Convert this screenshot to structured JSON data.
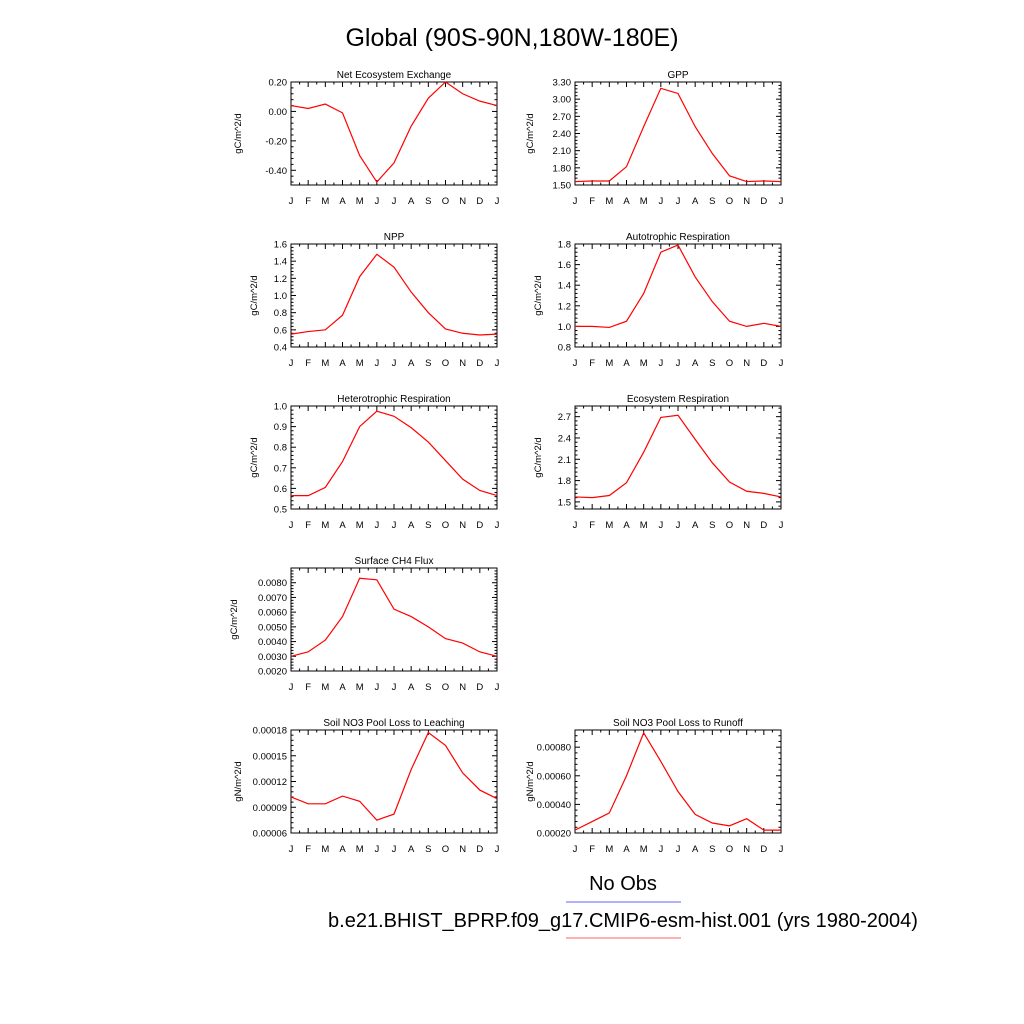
{
  "page": {
    "title": "Global (90S-90N,180W-180E)",
    "legend": {
      "obs_label": "No Obs",
      "obs_color": "#8080ff",
      "model_label": "b.e21.BHIST_BPRP.f09_g17.CMIP6-esm-hist.001 (yrs 1980-2004)",
      "model_color": "#ff0000"
    }
  },
  "chart_data": [
    {
      "type": "line",
      "title": "Net Ecosystem Exchange",
      "ylabel": "gC/m^2/d",
      "categories": [
        "J",
        "F",
        "M",
        "A",
        "M",
        "J",
        "J",
        "A",
        "S",
        "O",
        "N",
        "D",
        "J"
      ],
      "series": [
        {
          "values": [
            0.04,
            0.02,
            0.05,
            -0.01,
            -0.3,
            -0.48,
            -0.35,
            -0.1,
            0.09,
            0.2,
            0.12,
            0.07,
            0.04
          ],
          "color": "#ff0000"
        }
      ],
      "ylim": [
        -0.5,
        0.2
      ],
      "yticks": [
        0.2,
        0.0,
        -0.2,
        -0.4
      ],
      "yticklabels": [
        "0.20",
        "0.00",
        "-0.20",
        "-0.40"
      ]
    },
    {
      "type": "line",
      "title": "GPP",
      "ylabel": "gC/m^2/d",
      "categories": [
        "J",
        "F",
        "M",
        "A",
        "M",
        "J",
        "J",
        "A",
        "S",
        "O",
        "N",
        "D",
        "J"
      ],
      "series": [
        {
          "values": [
            1.56,
            1.57,
            1.57,
            1.82,
            2.52,
            3.19,
            3.1,
            2.52,
            2.05,
            1.66,
            1.56,
            1.57,
            1.56
          ],
          "color": "#ff0000"
        }
      ],
      "ylim": [
        1.5,
        3.3
      ],
      "yticks": [
        3.3,
        3.0,
        2.7,
        2.4,
        2.1,
        1.8,
        1.5
      ],
      "yticklabels": [
        "3.30",
        "3.00",
        "2.70",
        "2.40",
        "2.10",
        "1.80",
        "1.50"
      ]
    },
    {
      "type": "line",
      "title": "NPP",
      "ylabel": "gC/m^2/d",
      "categories": [
        "J",
        "F",
        "M",
        "A",
        "M",
        "J",
        "J",
        "A",
        "S",
        "O",
        "N",
        "D",
        "J"
      ],
      "series": [
        {
          "values": [
            0.55,
            0.58,
            0.6,
            0.77,
            1.22,
            1.48,
            1.33,
            1.04,
            0.8,
            0.61,
            0.56,
            0.54,
            0.55
          ],
          "color": "#ff0000"
        }
      ],
      "ylim": [
        0.4,
        1.6
      ],
      "yticks": [
        1.6,
        1.4,
        1.2,
        1.0,
        0.8,
        0.6,
        0.4
      ],
      "yticklabels": [
        "1.6",
        "1.4",
        "1.2",
        "1.0",
        "0.8",
        "0.6",
        "0.4"
      ]
    },
    {
      "type": "line",
      "title": "Autotrophic Respiration",
      "ylabel": "gC/m^2/d",
      "categories": [
        "J",
        "F",
        "M",
        "A",
        "M",
        "J",
        "J",
        "A",
        "S",
        "O",
        "N",
        "D",
        "J"
      ],
      "series": [
        {
          "values": [
            1.0,
            1.0,
            0.99,
            1.05,
            1.32,
            1.72,
            1.79,
            1.48,
            1.24,
            1.05,
            1.0,
            1.03,
            1.0
          ],
          "color": "#ff0000"
        }
      ],
      "ylim": [
        0.8,
        1.8
      ],
      "yticks": [
        1.8,
        1.6,
        1.4,
        1.2,
        1.0,
        0.8
      ],
      "yticklabels": [
        "1.8",
        "1.6",
        "1.4",
        "1.2",
        "1.0",
        "0.8"
      ]
    },
    {
      "type": "line",
      "title": "Heterotrophic Respiration",
      "ylabel": "gC/m^2/d",
      "categories": [
        "J",
        "F",
        "M",
        "A",
        "M",
        "J",
        "J",
        "A",
        "S",
        "O",
        "N",
        "D",
        "J"
      ],
      "series": [
        {
          "values": [
            0.565,
            0.565,
            0.605,
            0.73,
            0.9,
            0.975,
            0.95,
            0.895,
            0.825,
            0.735,
            0.645,
            0.59,
            0.565
          ],
          "color": "#ff0000"
        }
      ],
      "ylim": [
        0.5,
        1.0
      ],
      "yticks": [
        1.0,
        0.9,
        0.8,
        0.7,
        0.6,
        0.5
      ],
      "yticklabels": [
        "1.0",
        "0.9",
        "0.8",
        "0.7",
        "0.6",
        "0.5"
      ]
    },
    {
      "type": "line",
      "title": "Ecosystem Respiration",
      "ylabel": "gC/m^2/d",
      "categories": [
        "J",
        "F",
        "M",
        "A",
        "M",
        "J",
        "J",
        "A",
        "S",
        "O",
        "N",
        "D",
        "J"
      ],
      "series": [
        {
          "values": [
            1.57,
            1.56,
            1.59,
            1.77,
            2.2,
            2.69,
            2.72,
            2.38,
            2.05,
            1.78,
            1.65,
            1.62,
            1.57
          ],
          "color": "#ff0000"
        }
      ],
      "ylim": [
        1.4,
        2.85
      ],
      "yticks": [
        2.7,
        2.4,
        2.1,
        1.8,
        1.5
      ],
      "yticklabels": [
        "2.7",
        "2.4",
        "2.1",
        "1.8",
        "1.5"
      ]
    },
    {
      "type": "line",
      "title": "Surface CH4 Flux",
      "ylabel": "gC/m^2/d",
      "categories": [
        "J",
        "F",
        "M",
        "A",
        "M",
        "J",
        "J",
        "A",
        "S",
        "O",
        "N",
        "D",
        "J"
      ],
      "series": [
        {
          "values": [
            0.003,
            0.0033,
            0.0041,
            0.0057,
            0.0083,
            0.0082,
            0.0062,
            0.0057,
            0.005,
            0.0042,
            0.0039,
            0.0033,
            0.003
          ],
          "color": "#ff0000"
        }
      ],
      "ylim": [
        0.002,
        0.009
      ],
      "yticks": [
        0.008,
        0.007,
        0.006,
        0.005,
        0.004,
        0.003,
        0.002
      ],
      "yticklabels": [
        "0.0080",
        "0.0070",
        "0.0060",
        "0.0050",
        "0.0040",
        "0.0030",
        "0.0020"
      ]
    },
    {
      "type": "line",
      "title": "Soil NO3 Pool Loss to Leaching",
      "ylabel": "gN/m^2/d",
      "categories": [
        "J",
        "F",
        "M",
        "A",
        "M",
        "J",
        "J",
        "A",
        "S",
        "O",
        "N",
        "D",
        "J"
      ],
      "series": [
        {
          "values": [
            0.000102,
            9.4e-05,
            9.4e-05,
            0.000103,
            9.7e-05,
            7.5e-05,
            8.2e-05,
            0.000134,
            0.000177,
            0.000162,
            0.00013,
            0.00011,
            0.0001
          ],
          "color": "#ff0000"
        }
      ],
      "ylim": [
        6e-05,
        0.00018
      ],
      "yticks": [
        0.00018,
        0.00015,
        0.00012,
        9e-05,
        6e-05
      ],
      "yticklabels": [
        "0.00018",
        "0.00015",
        "0.00012",
        "0.00009",
        "0.00006"
      ]
    },
    {
      "type": "line",
      "title": "Soil NO3 Pool Loss to Runoff",
      "ylabel": "gN/m^2/d",
      "categories": [
        "J",
        "F",
        "M",
        "A",
        "M",
        "J",
        "J",
        "A",
        "S",
        "O",
        "N",
        "D",
        "J"
      ],
      "series": [
        {
          "values": [
            0.00022,
            0.00028,
            0.00034,
            0.0006,
            0.0009,
            0.0007,
            0.00049,
            0.00033,
            0.00027,
            0.00025,
            0.0003,
            0.00022,
            0.00022
          ],
          "color": "#ff0000"
        }
      ],
      "ylim": [
        0.0002,
        0.00092
      ],
      "yticks": [
        0.0008,
        0.0006,
        0.0004,
        0.0002
      ],
      "yticklabels": [
        "0.00080",
        "0.00060",
        "0.00040",
        "0.00020"
      ]
    }
  ]
}
